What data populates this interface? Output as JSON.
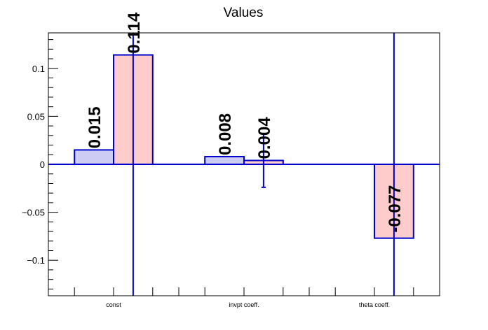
{
  "chart_data": {
    "type": "bar",
    "title": "Values",
    "xlabel": "",
    "ylabel": "",
    "categories": [
      "const",
      "invpt coeff.",
      "theta coeff."
    ],
    "ylim": [
      -0.137,
      0.137
    ],
    "yticks": [
      -0.1,
      -0.05,
      0,
      0.05,
      0.1
    ],
    "ytick_labels": [
      "−0.1",
      "−0.05",
      "0",
      "0.05",
      "0.1"
    ],
    "grid": false,
    "legend": "none",
    "colors": {
      "blue_fill": "#ccccf5",
      "red_fill": "#ffcccc",
      "stroke": "#0000cc"
    },
    "bars": [
      {
        "category": "const",
        "slot": 0,
        "series_color": "blue",
        "value": 0.015,
        "label": "0.015",
        "err_low": 0.015,
        "err_high": 0.015
      },
      {
        "category": "const",
        "slot": 1,
        "series_color": "red",
        "value": 0.114,
        "label": "0.114",
        "err_low": -0.137,
        "err_high": 0.137
      },
      {
        "category": "invpt coeff.",
        "slot": 0,
        "series_color": "blue",
        "value": 0.008,
        "label": "0.008",
        "err_low": 0.008,
        "err_high": 0.008
      },
      {
        "category": "invpt coeff.",
        "slot": 1,
        "series_color": "red",
        "value": 0.004,
        "label": "0.004",
        "err_low": -0.024,
        "err_high": 0.032
      },
      {
        "category": "theta coeff.",
        "slot": 1,
        "series_color": "red",
        "value": -0.077,
        "label": "-0.077",
        "err_low": -0.137,
        "err_high": 0.137
      }
    ]
  }
}
